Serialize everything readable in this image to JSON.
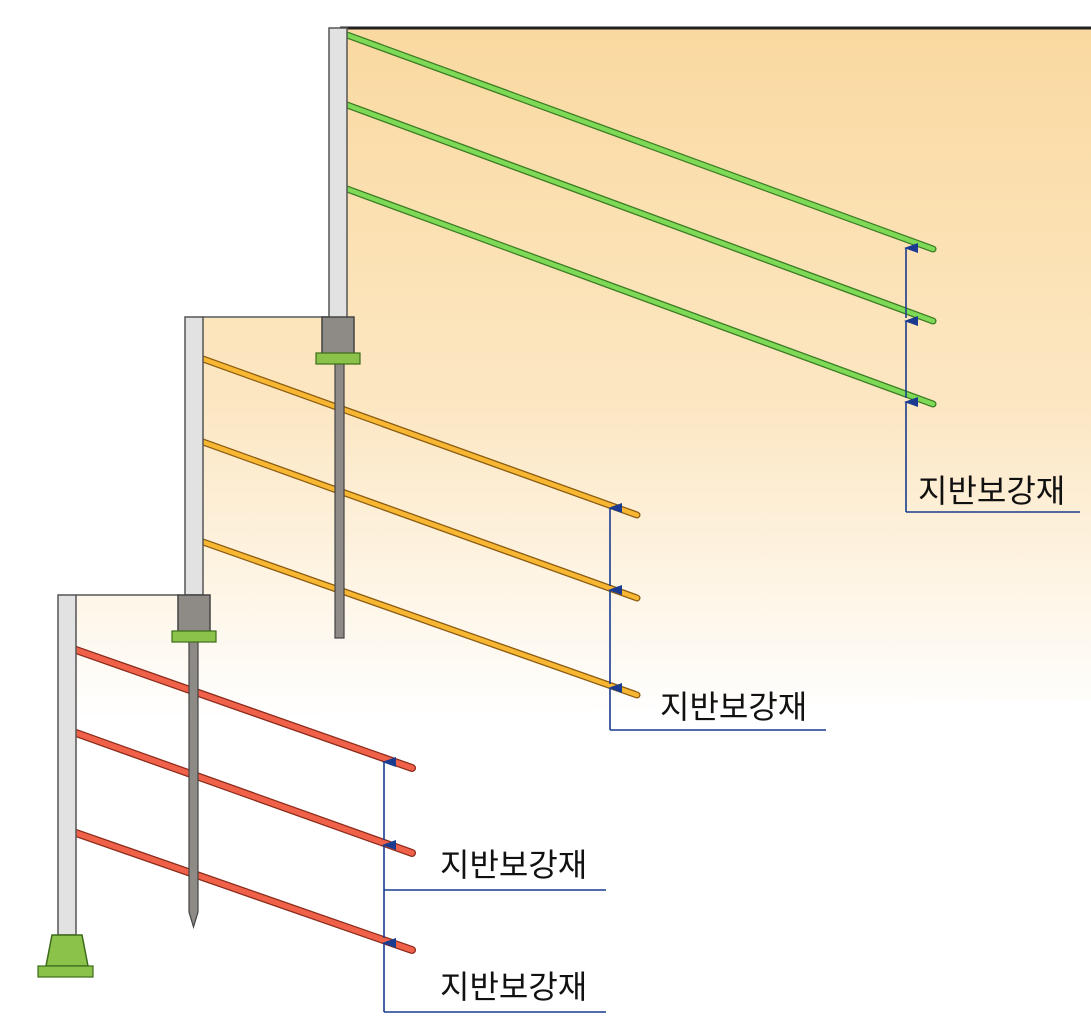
{
  "labels": {
    "tier1": "지반보강재",
    "tier2": "지반보강재",
    "tier3a": "지반보강재",
    "tier3b": "지반보강재"
  },
  "colors": {
    "soil_top": "#fad9a0",
    "soil_fade": "#ffffff",
    "wall_fill": "#e2e2e2",
    "wall_stroke": "#555555",
    "reinforcement_upper": "#7ed957",
    "reinforcement_middle": "#f7b733",
    "reinforcement_lower": "#f0614a",
    "bracket": "#8e8a86",
    "pad": "#8bc34a",
    "dimension_line": "#1a3b8f"
  }
}
